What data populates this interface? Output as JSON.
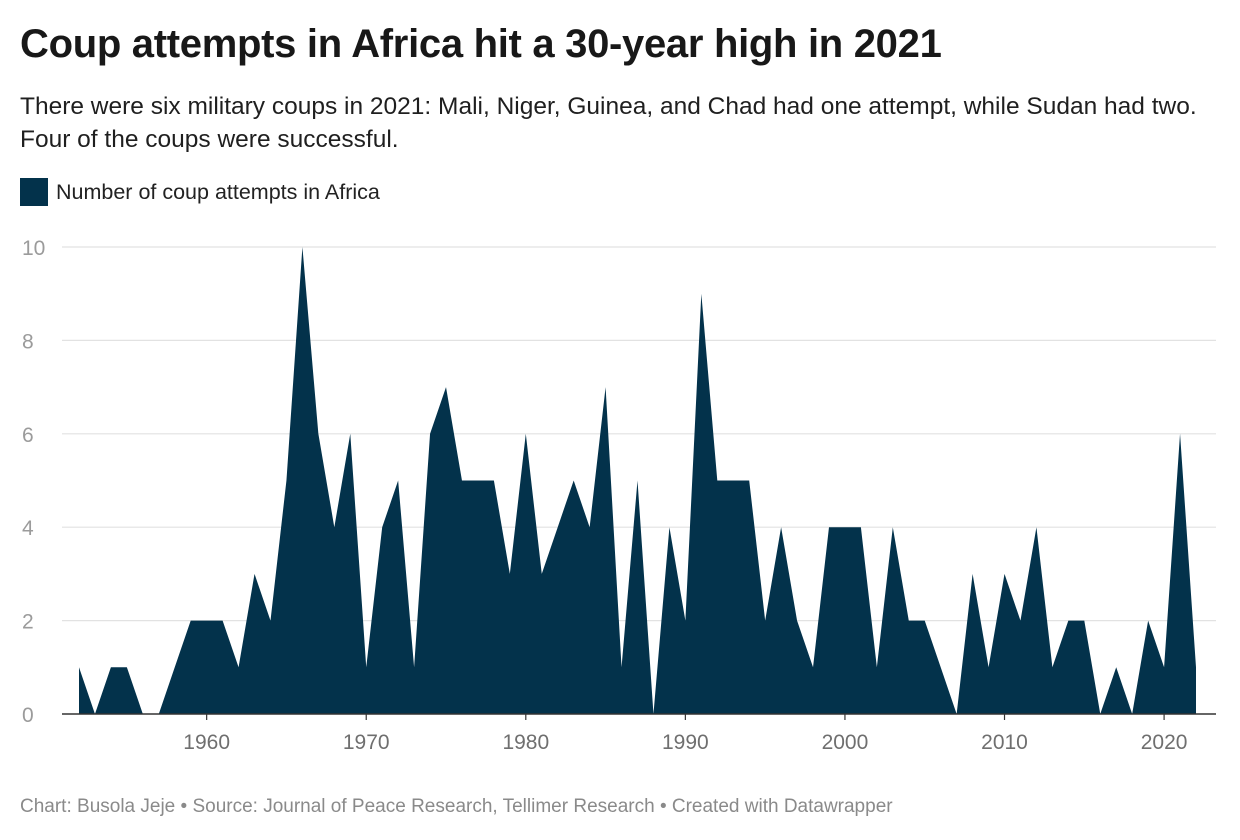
{
  "title": "Coup attempts in Africa hit a 30-year high in 2021",
  "subtitle": "There were six military coups in 2021: Mali, Niger, Guinea, and Chad had one attempt, while Sudan had two. Four of the coups were successful.",
  "footer": "Chart: Busola Jeje • Source: Journal of Peace Research, Tellimer Research • Created with Datawrapper",
  "colors": {
    "area": "#03324b",
    "grid": "#e2e2e2",
    "baseline": "#333333"
  },
  "chart_data": {
    "type": "area",
    "title": "Coup attempts in Africa hit a 30-year high in 2021",
    "xlabel": "",
    "ylabel": "",
    "xlim": [
      1952,
      2022
    ],
    "ylim": [
      0,
      10
    ],
    "grid": true,
    "legend_position": "top-left",
    "y_ticks": [
      0,
      2,
      4,
      6,
      8,
      10
    ],
    "x_ticks": [
      1960,
      1970,
      1980,
      1990,
      2000,
      2010,
      2020
    ],
    "series": [
      {
        "name": "Number of coup attempts in Africa",
        "x": [
          1952,
          1953,
          1954,
          1955,
          1956,
          1957,
          1958,
          1959,
          1960,
          1961,
          1962,
          1963,
          1964,
          1965,
          1966,
          1967,
          1968,
          1969,
          1970,
          1971,
          1972,
          1973,
          1974,
          1975,
          1976,
          1977,
          1978,
          1979,
          1980,
          1981,
          1982,
          1983,
          1984,
          1985,
          1986,
          1987,
          1988,
          1989,
          1990,
          1991,
          1992,
          1993,
          1994,
          1995,
          1996,
          1997,
          1998,
          1999,
          2000,
          2001,
          2002,
          2003,
          2004,
          2005,
          2006,
          2007,
          2008,
          2009,
          2010,
          2011,
          2012,
          2013,
          2014,
          2015,
          2016,
          2017,
          2018,
          2019,
          2020,
          2021,
          2022
        ],
        "values": [
          1,
          0,
          1,
          1,
          0,
          0,
          1,
          2,
          2,
          2,
          1,
          3,
          2,
          5,
          10,
          6,
          4,
          6,
          1,
          4,
          5,
          1,
          6,
          7,
          5,
          5,
          5,
          3,
          6,
          3,
          4,
          5,
          4,
          7,
          1,
          5,
          0,
          4,
          2,
          9,
          5,
          5,
          5,
          2,
          4,
          2,
          1,
          4,
          4,
          4,
          1,
          4,
          2,
          2,
          1,
          0,
          3,
          1,
          3,
          2,
          4,
          1,
          2,
          2,
          0,
          1,
          0,
          2,
          1,
          6,
          1
        ]
      }
    ]
  }
}
